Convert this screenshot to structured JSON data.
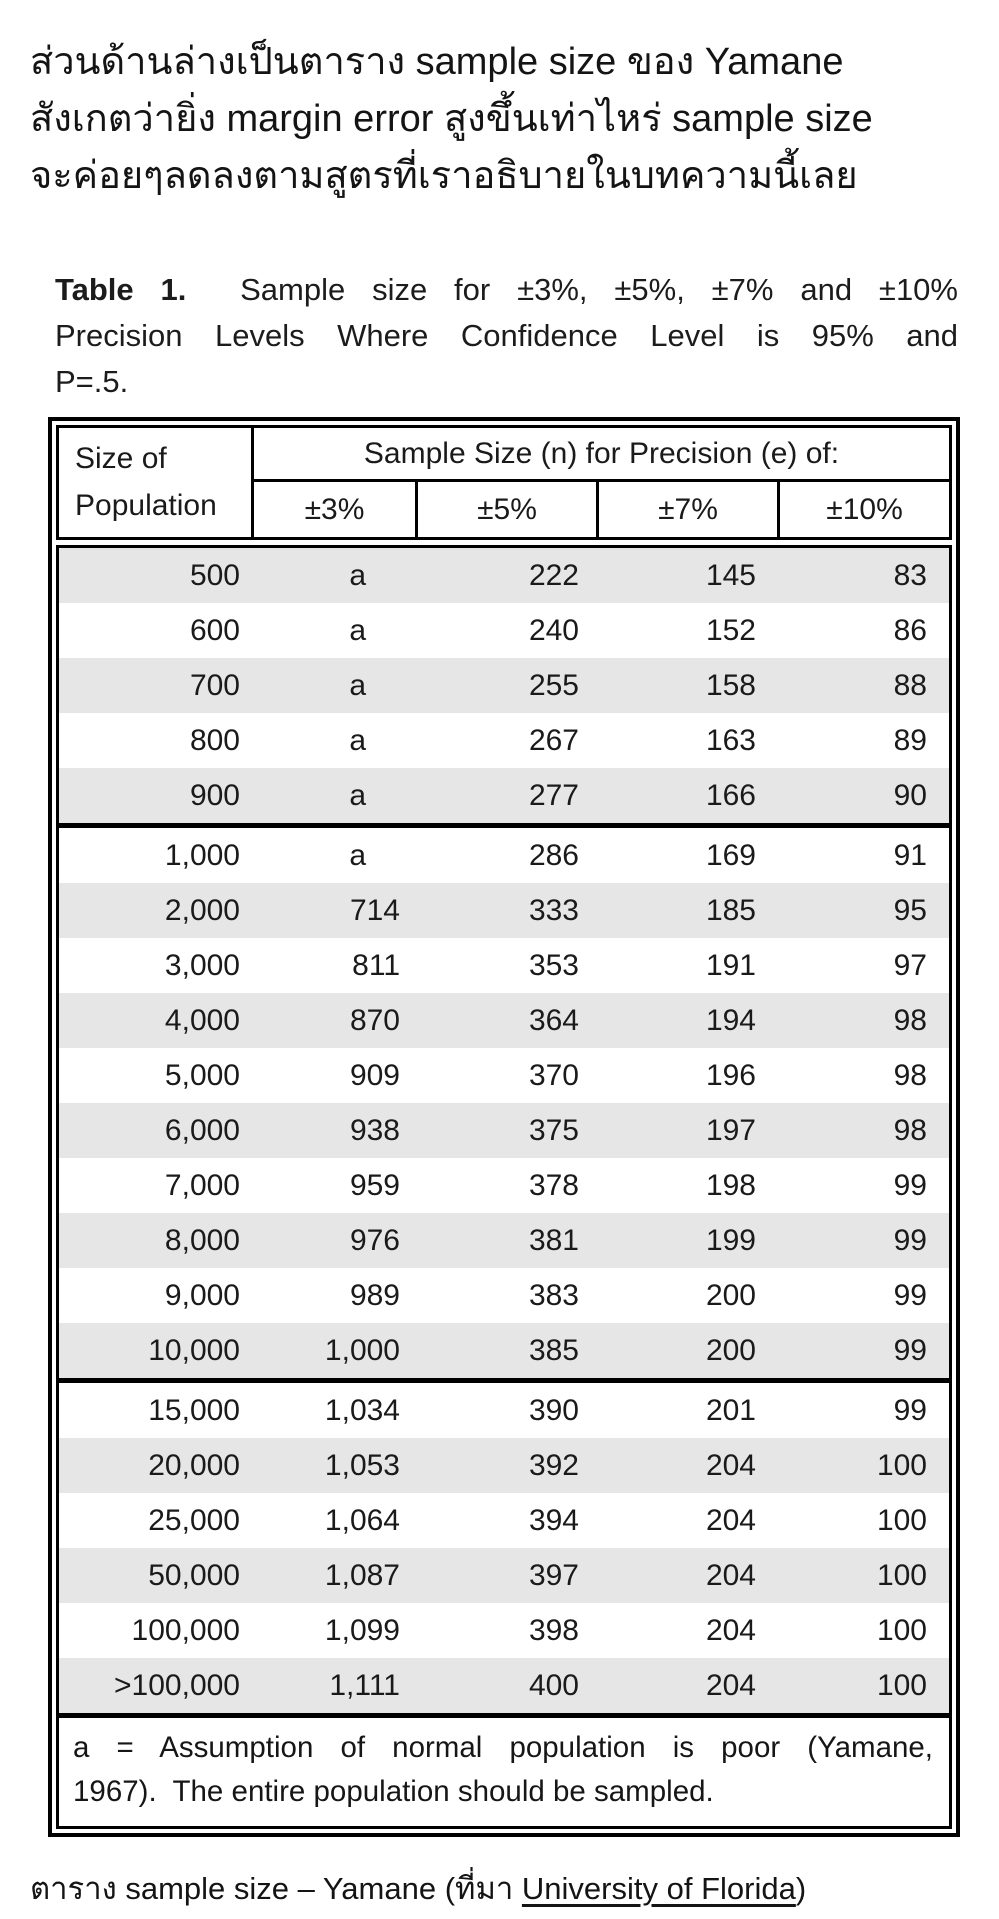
{
  "intro": {
    "lines": [
      "ส่วนด้านล่างเป็นตาราง sample size ของ Yamane",
      "สังเกตว่ายิ่ง margin error สูงขึ้นเท่าไหร่ sample size",
      "จะค่อยๆลดลงตามสูตรที่เราอธิบายในบทความนี้เลย"
    ]
  },
  "table": {
    "title": {
      "bold": "Table 1.",
      "rest": "  Sample size for ±3%, ±5%, ±7% and ±10%",
      "line2": "Precision Levels Where Confidence Level is 95% and",
      "line3": "P=.5."
    },
    "header": {
      "col1_line1": "Size of",
      "col1_line2": "Population",
      "span_label": "Sample Size (n) for Precision (e) of:",
      "precision_cols": [
        "±3%",
        "±5%",
        "±7%",
        "±10%"
      ]
    },
    "columns": [
      "population",
      "p3",
      "p5",
      "p7",
      "p10"
    ],
    "groups": [
      {
        "rows": [
          [
            "500",
            "a",
            "222",
            "145",
            "83"
          ],
          [
            "600",
            "a",
            "240",
            "152",
            "86"
          ],
          [
            "700",
            "a",
            "255",
            "158",
            "88"
          ],
          [
            "800",
            "a",
            "267",
            "163",
            "89"
          ],
          [
            "900",
            "a",
            "277",
            "166",
            "90"
          ]
        ]
      },
      {
        "rows": [
          [
            "1,000",
            "a",
            "286",
            "169",
            "91"
          ],
          [
            "2,000",
            "714",
            "333",
            "185",
            "95"
          ],
          [
            "3,000",
            "811",
            "353",
            "191",
            "97"
          ],
          [
            "4,000",
            "870",
            "364",
            "194",
            "98"
          ],
          [
            "5,000",
            "909",
            "370",
            "196",
            "98"
          ],
          [
            "6,000",
            "938",
            "375",
            "197",
            "98"
          ],
          [
            "7,000",
            "959",
            "378",
            "198",
            "99"
          ],
          [
            "8,000",
            "976",
            "381",
            "199",
            "99"
          ],
          [
            "9,000",
            "989",
            "383",
            "200",
            "99"
          ],
          [
            "10,000",
            "1,000",
            "385",
            "200",
            "99"
          ]
        ]
      },
      {
        "rows": [
          [
            "15,000",
            "1,034",
            "390",
            "201",
            "99"
          ],
          [
            "20,000",
            "1,053",
            "392",
            "204",
            "100"
          ],
          [
            "25,000",
            "1,064",
            "394",
            "204",
            "100"
          ],
          [
            "50,000",
            "1,087",
            "397",
            "204",
            "100"
          ],
          [
            "100,000",
            "1,099",
            "398",
            "204",
            "100"
          ],
          [
            ">100,000",
            "1,111",
            "400",
            "204",
            "100"
          ]
        ]
      }
    ],
    "footnote": {
      "line1": "a = Assumption of normal population is poor (Yamane,",
      "line2": "1967).  The entire population should be sampled."
    }
  },
  "caption": {
    "prefix": "ตาราง sample size – Yamane (ที่มา ",
    "link_text": "University of Florida",
    "suffix": ")"
  },
  "colors": {
    "row_shade": "#e6e6e6",
    "border": "#000000",
    "text": "#1a1a1a"
  }
}
